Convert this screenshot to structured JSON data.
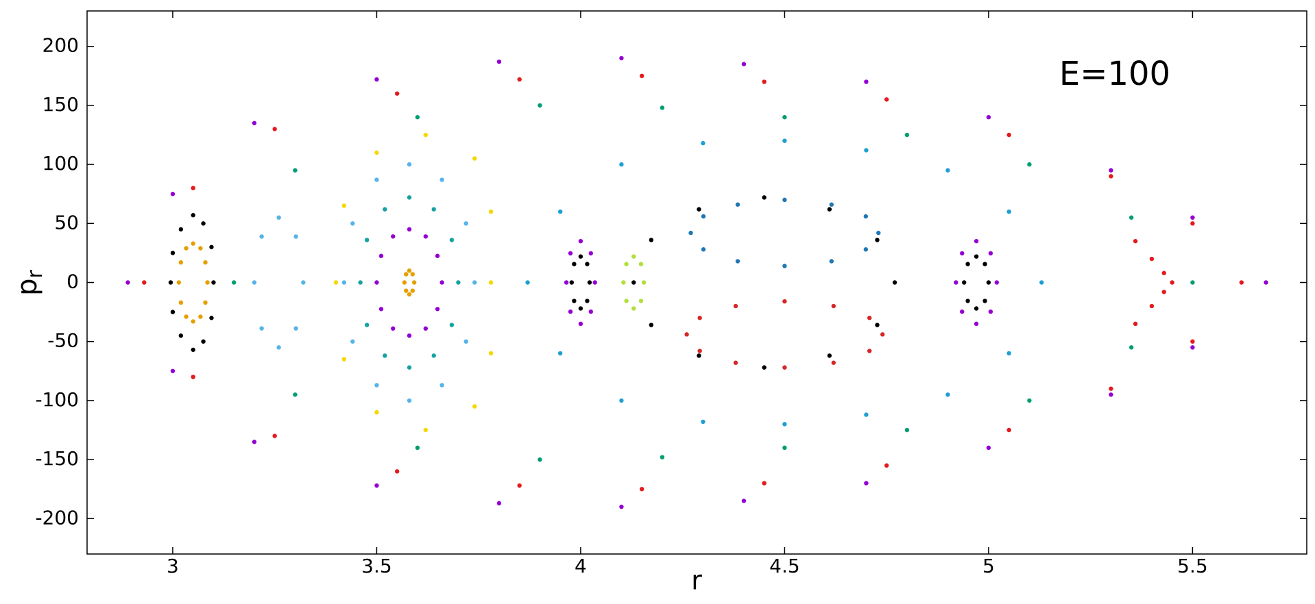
{
  "chart_data": {
    "type": "scatter",
    "annotation": "E=100",
    "xlabel": "r",
    "ylabel": "p",
    "ylabel_subscript": "r",
    "xlim": [
      2.79,
      5.78
    ],
    "ylim": [
      -230,
      230
    ],
    "xticks": [
      3,
      3.5,
      4,
      4.5,
      5,
      5.5
    ],
    "yticks": [
      -200,
      -150,
      -100,
      -50,
      0,
      50,
      100,
      150,
      200
    ],
    "grid": false,
    "series": [
      {
        "color": "#9400d3",
        "x": [
          2.89,
          3.0,
          3.2,
          3.5,
          3.8,
          4.1,
          4.4,
          4.7,
          5.0,
          5.3,
          5.5,
          5.68,
          5.5,
          5.3,
          5.0,
          4.7,
          4.4,
          4.1,
          3.8,
          3.5,
          3.2,
          3.0
        ],
        "y": [
          0,
          75,
          135,
          172,
          187,
          190,
          185,
          170,
          140,
          95,
          55,
          0,
          -55,
          -95,
          -140,
          -170,
          -185,
          -190,
          -187,
          -172,
          -135,
          -75
        ]
      },
      {
        "color": "#e41a1c",
        "x": [
          2.93,
          3.05,
          3.25,
          3.55,
          3.85,
          4.15,
          4.45,
          4.75,
          5.05,
          5.3,
          5.5,
          5.62,
          5.5,
          5.3,
          5.05,
          4.75,
          4.45,
          4.15,
          3.85,
          3.55,
          3.25,
          3.05
        ],
        "y": [
          0,
          80,
          130,
          160,
          172,
          175,
          170,
          155,
          125,
          90,
          50,
          0,
          -50,
          -90,
          -125,
          -155,
          -170,
          -175,
          -172,
          -160,
          -130,
          -80
        ]
      },
      {
        "color": "#009e73",
        "x": [
          3.15,
          3.3,
          3.6,
          3.9,
          4.2,
          4.5,
          4.8,
          5.1,
          5.35,
          5.5,
          5.35,
          5.1,
          4.8,
          4.5,
          4.2,
          3.9,
          3.6,
          3.3
        ],
        "y": [
          0,
          95,
          140,
          150,
          148,
          140,
          125,
          100,
          55,
          0,
          -55,
          -100,
          -125,
          -140,
          -148,
          -150,
          -140,
          -95
        ]
      },
      {
        "color": "#1f9fd4",
        "x": [
          3.87,
          3.95,
          4.1,
          4.3,
          4.5,
          4.7,
          4.9,
          5.05,
          5.13,
          5.05,
          4.9,
          4.7,
          4.5,
          4.3,
          4.1,
          3.95
        ],
        "y": [
          0,
          60,
          100,
          118,
          120,
          112,
          95,
          60,
          0,
          -60,
          -95,
          -112,
          -120,
          -118,
          -100,
          -60
        ]
      },
      {
        "color": "#000000",
        "x": [
          4.77,
          4.727,
          4.61,
          4.45,
          4.29,
          4.173,
          4.13,
          4.173,
          4.29,
          4.45,
          4.61,
          4.727
        ],
        "y": [
          0,
          36,
          62,
          72,
          62,
          36,
          0,
          -36,
          -62,
          -72,
          -62,
          -36
        ]
      },
      {
        "color": "#1f77b4",
        "x": [
          4.73,
          4.699,
          4.615,
          4.5,
          4.385,
          4.301,
          4.27,
          4.301,
          4.385,
          4.5,
          4.615,
          4.699
        ],
        "y": [
          42,
          56,
          66,
          70,
          66,
          56,
          42,
          28,
          18,
          14,
          18,
          28
        ]
      },
      {
        "color": "#d62728",
        "x": [
          4.74,
          4.708,
          4.62,
          4.5,
          4.38,
          4.292,
          4.26,
          4.292,
          4.38,
          4.5,
          4.62,
          4.708
        ],
        "y": [
          -44,
          -30,
          -20,
          -16,
          -20,
          -30,
          -44,
          -58,
          -68,
          -72,
          -68,
          -58
        ]
      },
      {
        "color": "#e69f00",
        "x": [
          3.085,
          3.08,
          3.068,
          3.05,
          3.033,
          3.02,
          3.015,
          3.02,
          3.033,
          3.05,
          3.068,
          3.08
        ],
        "y": [
          0,
          17,
          29,
          33,
          29,
          17,
          0,
          -17,
          -29,
          -33,
          -29,
          -17
        ]
      },
      {
        "color": "#000000",
        "x": [
          3.1,
          3.095,
          3.075,
          3.05,
          3.02,
          3.0,
          2.995,
          3.0,
          3.02,
          3.05,
          3.075,
          3.095
        ],
        "y": [
          0,
          30,
          50,
          57,
          45,
          25,
          0,
          -25,
          -45,
          -57,
          -50,
          -30
        ]
      },
      {
        "color": "#9400d3",
        "x": [
          3.66,
          3.649,
          3.62,
          3.58,
          3.54,
          3.511,
          3.5,
          3.511,
          3.54,
          3.58,
          3.62,
          3.649
        ],
        "y": [
          0,
          22.5,
          39,
          45,
          39,
          22.5,
          0,
          -22.5,
          -39,
          -45,
          -39,
          -22.5
        ]
      },
      {
        "color": "#17a2a2",
        "x": [
          3.7,
          3.684,
          3.64,
          3.58,
          3.52,
          3.476,
          3.46,
          3.476,
          3.52,
          3.58,
          3.64,
          3.684
        ],
        "y": [
          0,
          36,
          62,
          72,
          62,
          36,
          0,
          -36,
          -62,
          -72,
          -62,
          -36
        ]
      },
      {
        "color": "#56b4e9",
        "x": [
          3.74,
          3.719,
          3.66,
          3.58,
          3.5,
          3.441,
          3.42,
          3.441,
          3.5,
          3.58,
          3.66,
          3.719
        ],
        "y": [
          0,
          50,
          87,
          100,
          87,
          50,
          0,
          -50,
          -87,
          -100,
          -87,
          -50
        ]
      },
      {
        "color": "#f5d800",
        "x": [
          3.78,
          3.78,
          3.74,
          3.62,
          3.5,
          3.42,
          3.4,
          3.42,
          3.5,
          3.62,
          3.74,
          3.78
        ],
        "y": [
          0,
          60,
          105,
          125,
          110,
          65,
          0,
          -65,
          -110,
          -125,
          -105,
          -60
        ]
      },
      {
        "color": "#e69f00",
        "x": [
          3.592,
          3.588,
          3.58,
          3.572,
          3.568,
          3.572,
          3.58,
          3.588
        ],
        "y": [
          0,
          7,
          10,
          7,
          0,
          -7,
          -10,
          -7
        ]
      },
      {
        "color": "#9400d3",
        "x": [
          4.035,
          4.025,
          4.0,
          3.975,
          3.965,
          3.975,
          4.0,
          4.025
        ],
        "y": [
          0,
          24.7,
          35,
          24.7,
          0,
          -24.7,
          -35,
          -24.7
        ]
      },
      {
        "color": "#000000",
        "x": [
          4.022,
          4.016,
          4.0,
          3.984,
          3.978,
          3.984,
          4.0,
          4.016
        ],
        "y": [
          0,
          15.6,
          22,
          15.6,
          0,
          -15.6,
          -22,
          -15.6
        ]
      },
      {
        "color": "#9400d3",
        "x": [
          5.02,
          5.005,
          4.97,
          4.935,
          4.92,
          4.935,
          4.97,
          5.005
        ],
        "y": [
          0,
          24.7,
          35,
          24.7,
          0,
          -24.7,
          -35,
          -24.7
        ]
      },
      {
        "color": "#000000",
        "x": [
          5.0,
          4.991,
          4.97,
          4.949,
          4.94,
          4.949,
          4.97,
          4.991
        ],
        "y": [
          0,
          15.6,
          22,
          15.6,
          0,
          -15.6,
          -22,
          -15.6
        ]
      },
      {
        "color": "#56b4e9",
        "x": [
          3.32,
          3.302,
          3.26,
          3.218,
          3.2,
          3.218,
          3.26,
          3.302
        ],
        "y": [
          0,
          38.9,
          55,
          38.9,
          0,
          -38.9,
          -55,
          -38.9
        ]
      },
      {
        "color": "#e41a1c",
        "x": [
          5.36,
          5.4,
          5.43,
          5.45,
          5.43,
          5.4,
          5.36
        ],
        "y": [
          35,
          20,
          8,
          0,
          -8,
          -20,
          -35
        ]
      },
      {
        "color": "#b2df3b",
        "x": [
          4.155,
          4.148,
          4.13,
          4.112,
          4.105,
          4.112,
          4.13,
          4.148
        ],
        "y": [
          0,
          15.6,
          22,
          15.6,
          0,
          -15.6,
          -22,
          -15.6
        ]
      }
    ]
  }
}
